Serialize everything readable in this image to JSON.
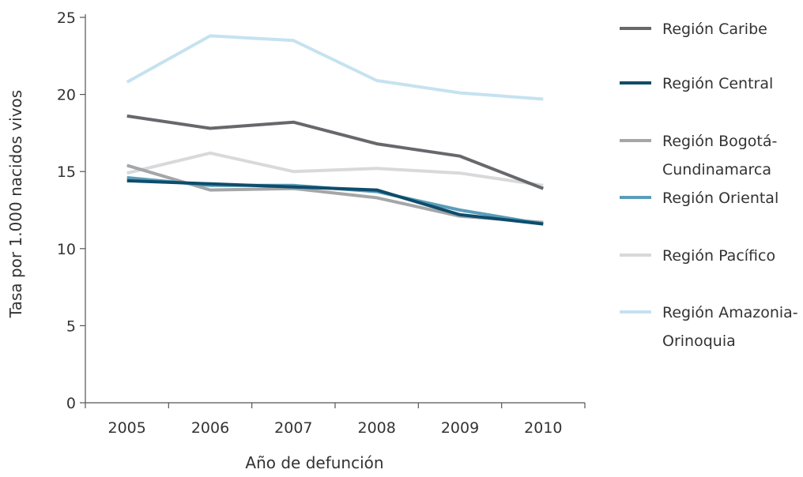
{
  "chart_data": {
    "type": "line",
    "title": "",
    "xlabel": "Año de defunción",
    "ylabel": "Tasa por 1.000 nacidos vivos",
    "x": [
      "2005",
      "2006",
      "2007",
      "2008",
      "2009",
      "2010"
    ],
    "ylim": [
      0,
      25
    ],
    "yticks": [
      "0",
      "5",
      "10",
      "15",
      "20",
      "25"
    ],
    "grid": false,
    "legend_position": "right",
    "series": [
      {
        "name": "Región Caribe",
        "name_lines": [
          "Región Caribe"
        ],
        "color": "#67686b",
        "values": [
          18.6,
          17.8,
          18.2,
          16.8,
          16.0,
          13.9
        ]
      },
      {
        "name": "Región Central",
        "name_lines": [
          "Región Central"
        ],
        "color": "#0f4c6b",
        "values": [
          14.4,
          14.2,
          14.0,
          13.8,
          12.2,
          11.6
        ]
      },
      {
        "name": "Región Bogotá-Cundinamarca",
        "name_lines": [
          "Región Bogotá-",
          "Cundinamarca"
        ],
        "color": "#a5a6a8",
        "values": [
          15.4,
          13.8,
          13.9,
          13.3,
          12.1,
          11.7
        ]
      },
      {
        "name": "Región Oriental",
        "name_lines": [
          "Región Oriental"
        ],
        "color": "#5a9db9",
        "values": [
          14.6,
          14.1,
          14.1,
          13.7,
          12.5,
          11.6
        ]
      },
      {
        "name": "Región Pacífico",
        "name_lines": [
          "Región Pacífico"
        ],
        "color": "#d8d9da",
        "values": [
          14.9,
          16.2,
          15.0,
          15.2,
          14.9,
          14.1
        ]
      },
      {
        "name": "Región Amazonia-Orinoquia",
        "name_lines": [
          "Región Amazonia-",
          "Orinoquia"
        ],
        "color": "#c5e2f0",
        "values": [
          20.8,
          23.8,
          23.5,
          20.9,
          20.1,
          19.7
        ]
      }
    ]
  }
}
